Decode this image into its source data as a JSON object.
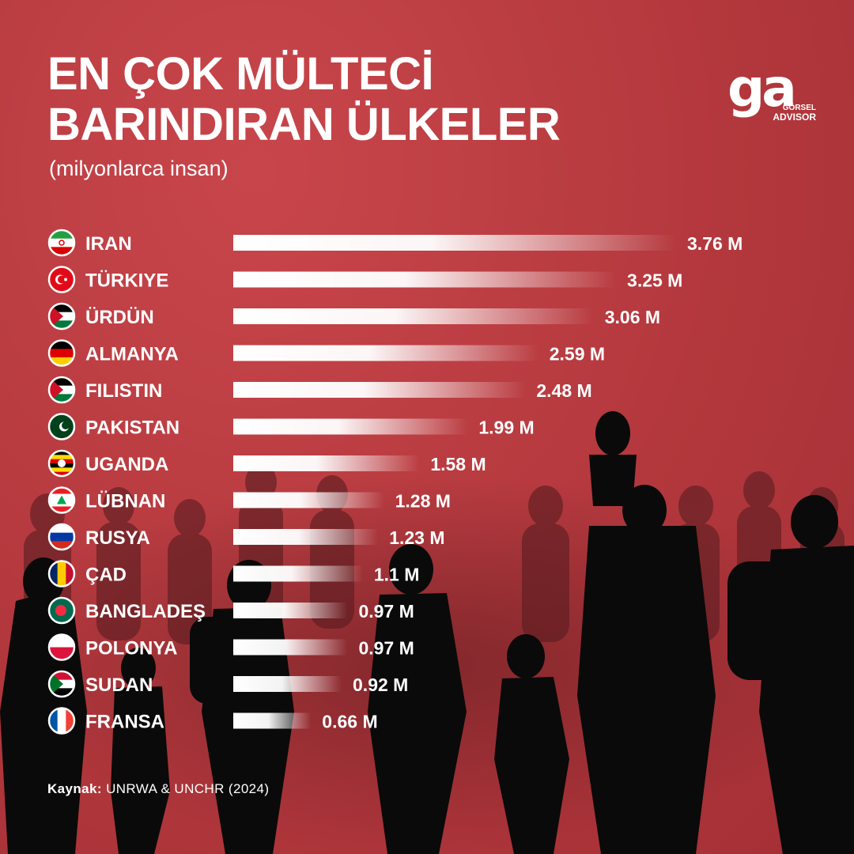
{
  "title_line1": "EN ÇOK MÜLTECİ",
  "title_line2": "BARINDIRAN ÜLKELER",
  "subtitle": "(milyonlarca insan)",
  "logo": {
    "mark": "ga",
    "line1": "GÖRSEL",
    "line2": "ADVISOR"
  },
  "source": {
    "label": "Kaynak:",
    "text": "UNRWA & UNCHR (2024)"
  },
  "colors": {
    "background": "#b93a3f",
    "bar": "#ffffff",
    "text": "#ffffff",
    "silhouette": "#0a0a0a"
  },
  "chart_data": {
    "type": "bar",
    "orientation": "horizontal",
    "unit": "M",
    "categories": [
      "IRAN",
      "TÜRKIYE",
      "ÜRDÜN",
      "ALMANYA",
      "FILISTIN",
      "PAKISTAN",
      "UGANDA",
      "LÜBNAN",
      "RUSYA",
      "ÇAD",
      "BANGLADEŞ",
      "POLONYA",
      "SUDAN",
      "FRANSA"
    ],
    "values": [
      3.76,
      3.25,
      3.06,
      2.59,
      2.48,
      1.99,
      1.58,
      1.28,
      1.23,
      1.1,
      0.97,
      0.97,
      0.92,
      0.66
    ],
    "value_labels": [
      "3.76 M",
      "3.25 M",
      "3.06 M",
      "2.59 M",
      "2.48 M",
      "1.99 M",
      "1.58 M",
      "1.28 M",
      "1.23 M",
      "1.1 M",
      "0.97 M",
      "0.97 M",
      "0.92 M",
      "0.66 M"
    ],
    "flags": [
      "iran",
      "turkey",
      "jordan",
      "germany",
      "palestine",
      "pakistan",
      "uganda",
      "lebanon",
      "russia",
      "chad",
      "bangladesh",
      "poland",
      "sudan",
      "france"
    ],
    "grid": false,
    "legend": "none"
  }
}
